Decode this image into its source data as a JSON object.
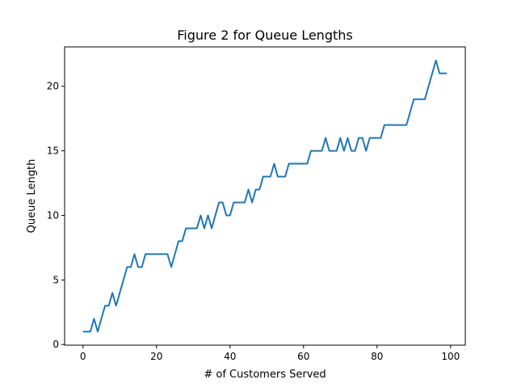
{
  "chart_data": {
    "type": "line",
    "title": "Figure 2 for Queue Lengths",
    "xlabel": "# of Customers Served",
    "ylabel": "Queue Length",
    "xlim": [
      -5,
      104
    ],
    "ylim": [
      -0.05,
      23.05
    ],
    "xticks": [
      0,
      20,
      40,
      60,
      80,
      100
    ],
    "yticks": [
      0,
      5,
      10,
      15,
      20
    ],
    "grid": false,
    "series": [
      {
        "name": "Queue Length",
        "color": "#1f77b4",
        "x": [
          0,
          1,
          2,
          3,
          4,
          5,
          6,
          7,
          8,
          9,
          10,
          11,
          12,
          13,
          14,
          15,
          16,
          17,
          18,
          19,
          20,
          21,
          22,
          23,
          24,
          25,
          26,
          27,
          28,
          29,
          30,
          31,
          32,
          33,
          34,
          35,
          36,
          37,
          38,
          39,
          40,
          41,
          42,
          43,
          44,
          45,
          46,
          47,
          48,
          49,
          50,
          51,
          52,
          53,
          54,
          55,
          56,
          57,
          58,
          59,
          60,
          61,
          62,
          63,
          64,
          65,
          66,
          67,
          68,
          69,
          70,
          71,
          72,
          73,
          74,
          75,
          76,
          77,
          78,
          79,
          80,
          81,
          82,
          83,
          84,
          85,
          86,
          87,
          88,
          89,
          90,
          91,
          92,
          93,
          94,
          95,
          96,
          97,
          98,
          99
        ],
        "values": [
          1,
          1,
          1,
          2,
          1,
          2,
          3,
          3,
          4,
          3,
          4,
          5,
          6,
          6,
          7,
          6,
          6,
          7,
          7,
          7,
          7,
          7,
          7,
          7,
          6,
          7,
          8,
          8,
          9,
          9,
          9,
          9,
          10,
          9,
          10,
          9,
          10,
          11,
          11,
          10,
          10,
          11,
          11,
          11,
          11,
          12,
          11,
          12,
          12,
          13,
          13,
          13,
          14,
          13,
          13,
          13,
          14,
          14,
          14,
          14,
          14,
          14,
          15,
          15,
          15,
          15,
          16,
          15,
          15,
          15,
          16,
          15,
          16,
          15,
          15,
          16,
          16,
          15,
          16,
          16,
          16,
          16,
          17,
          17,
          17,
          17,
          17,
          17,
          17,
          18,
          19,
          19,
          19,
          19,
          20,
          21,
          22,
          21,
          21,
          21
        ]
      }
    ]
  }
}
